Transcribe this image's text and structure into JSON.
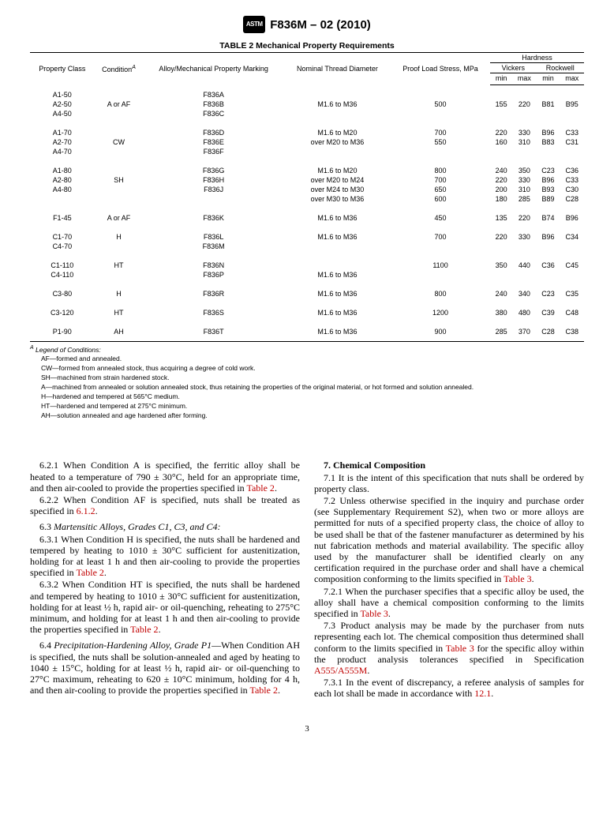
{
  "header": {
    "logo_text": "ASTM",
    "standard": "F836M – 02 (2010)"
  },
  "table": {
    "title": "TABLE 2 Mechanical Property Requirements",
    "columns": {
      "c1": "Property Class",
      "c2_html": "Condition",
      "c2_sup": "A",
      "c3": "Alloy/Mechanical Property Marking",
      "c4": "Nominal Thread Diameter",
      "c5": "Proof Load Stress, MPa",
      "hardness": "Hardness",
      "vickers": "Vickers",
      "rockwell": "Rockwell",
      "min": "min",
      "max": "max"
    },
    "groups": [
      {
        "rows": [
          {
            "pc": "A1-50",
            "cond": "",
            "mark": "F836A",
            "dia": "",
            "proof": "",
            "vmin": "",
            "vmax": "",
            "rmin": "",
            "rmax": ""
          },
          {
            "pc": "A2-50",
            "cond": "A or AF",
            "mark": "F836B",
            "dia": "M1.6 to M36",
            "proof": "500",
            "vmin": "155",
            "vmax": "220",
            "rmin": "B81",
            "rmax": "B95"
          },
          {
            "pc": "A4-50",
            "cond": "",
            "mark": "F836C",
            "dia": "",
            "proof": "",
            "vmin": "",
            "vmax": "",
            "rmin": "",
            "rmax": ""
          }
        ]
      },
      {
        "rows": [
          {
            "pc": "A1-70",
            "cond": "",
            "mark": "F836D",
            "dia": "M1.6 to M20",
            "proof": "700",
            "vmin": "220",
            "vmax": "330",
            "rmin": "B96",
            "rmax": "C33"
          },
          {
            "pc": "A2-70",
            "cond": "CW",
            "mark": "F836E",
            "dia": "over M20 to M36",
            "proof": "550",
            "vmin": "160",
            "vmax": "310",
            "rmin": "B83",
            "rmax": "C31"
          },
          {
            "pc": "A4-70",
            "cond": "",
            "mark": "F836F",
            "dia": "",
            "proof": "",
            "vmin": "",
            "vmax": "",
            "rmin": "",
            "rmax": ""
          }
        ]
      },
      {
        "rows": [
          {
            "pc": "A1-80",
            "cond": "",
            "mark": "F836G",
            "dia": "M1.6 to M20",
            "proof": "800",
            "vmin": "240",
            "vmax": "350",
            "rmin": "C23",
            "rmax": "C36"
          },
          {
            "pc": "A2-80",
            "cond": "SH",
            "mark": "F836H",
            "dia": "over M20 to M24",
            "proof": "700",
            "vmin": "220",
            "vmax": "330",
            "rmin": "B96",
            "rmax": "C33"
          },
          {
            "pc": "A4-80",
            "cond": "",
            "mark": "F836J",
            "dia": "over M24 to M30",
            "proof": "650",
            "vmin": "200",
            "vmax": "310",
            "rmin": "B93",
            "rmax": "C30"
          },
          {
            "pc": "",
            "cond": "",
            "mark": "",
            "dia": "over M30 to M36",
            "proof": "600",
            "vmin": "180",
            "vmax": "285",
            "rmin": "B89",
            "rmax": "C28"
          }
        ]
      },
      {
        "rows": [
          {
            "pc": "F1-45",
            "cond": "A or AF",
            "mark": "F836K",
            "dia": "M1.6 to M36",
            "proof": "450",
            "vmin": "135",
            "vmax": "220",
            "rmin": "B74",
            "rmax": "B96"
          }
        ]
      },
      {
        "rows": [
          {
            "pc": "C1-70",
            "cond": "H",
            "mark": "F836L",
            "dia": "M1.6 to M36",
            "proof": "700",
            "vmin": "220",
            "vmax": "330",
            "rmin": "B96",
            "rmax": "C34"
          },
          {
            "pc": "C4-70",
            "cond": "",
            "mark": "F836M",
            "dia": "",
            "proof": "",
            "vmin": "",
            "vmax": "",
            "rmin": "",
            "rmax": ""
          }
        ]
      },
      {
        "rows": [
          {
            "pc": "C1-110",
            "cond": "HT",
            "mark": "F836N",
            "dia": "",
            "proof": "1100",
            "vmin": "350",
            "vmax": "440",
            "rmin": "C36",
            "rmax": "C45"
          },
          {
            "pc": "C4-110",
            "cond": "",
            "mark": "F836P",
            "dia": "M1.6 to M36",
            "proof": "",
            "vmin": "",
            "vmax": "",
            "rmin": "",
            "rmax": ""
          }
        ]
      },
      {
        "rows": [
          {
            "pc": "C3-80",
            "cond": "H",
            "mark": "F836R",
            "dia": "M1.6 to M36",
            "proof": "800",
            "vmin": "240",
            "vmax": "340",
            "rmin": "C23",
            "rmax": "C35"
          }
        ]
      },
      {
        "rows": [
          {
            "pc": "C3-120",
            "cond": "HT",
            "mark": "F836S",
            "dia": "M1.6 to M36",
            "proof": "1200",
            "vmin": "380",
            "vmax": "480",
            "rmin": "C39",
            "rmax": "C48"
          }
        ]
      },
      {
        "rows": [
          {
            "pc": "P1-90",
            "cond": "AH",
            "mark": "F836T",
            "dia": "M1.6 to M36",
            "proof": "900",
            "vmin": "285",
            "vmax": "370",
            "rmin": "C28",
            "rmax": "C38"
          }
        ],
        "last": true
      }
    ]
  },
  "legend": {
    "header_sup": "A",
    "header": " Legend of Conditions:",
    "items": [
      "AF—formed and annealed.",
      "CW—formed from annealed stock, thus acquiring a degree of cold work.",
      "SH—machined from strain hardened stock.",
      "A—machined from annealed or solution annealed stock, thus retaining the properties of the original material, or hot formed and solution annealed.",
      "H—hardened and tempered at 565°C medium.",
      "HT—hardened and tempered at 275°C minimum.",
      "AH—solution annealed and age hardened after forming."
    ]
  },
  "body": {
    "p1a": "6.2.1 When Condition A is specified, the ferritic alloy shall be heated to a temperature of 790 ± 30°C, held for an appropriate time, and then air-cooled to provide the properties specified in ",
    "p1ref": "Table 2",
    "p1b": ".",
    "p2a": "6.2.2 When Condition AF is specified, nuts shall be treated as specified in ",
    "p2ref": "6.1.2",
    "p2b": ".",
    "p3": "6.3 Martensitic Alloys, Grades C1, C3, and C4:",
    "p4a": "6.3.1 When Condition H is specified, the nuts shall be hardened and tempered by heating to 1010 ± 30°C sufficient for austenitization, holding for at least 1 h and then air-cooling to provide the properties specified in ",
    "p4ref": "Table 2",
    "p4b": ".",
    "p5a": "6.3.2 When Condition HT is specified, the nuts shall be hardened and tempered by heating to 1010 ± 30°C sufficient for austenitization, holding for at least ½ h, rapid air- or oil-quenching, reheating to 275°C minimum, and holding for at least 1 h and then air-cooling to provide the properties specified in ",
    "p5ref": "Table 2",
    "p5b": ".",
    "p6a": "6.4 ",
    "p6i": "Precipitation-Hardening Alloy, Grade P1",
    "p6b": "—When Condition AH is specified, the nuts shall be solution-annealed and aged by heating to 1040 ± 15°C, holding for at least ½ h, rapid air- or oil-quenching to 27°C maximum, reheating to 620 ± 10°C minimum, holding for 4 h, and then air-cooling to provide the properties specified in ",
    "p6ref": "Table 2",
    "p6c": ".",
    "s7": "7. Chemical Composition",
    "p7a": "7.1 It is the intent of this specification that nuts shall be ordered by property class.",
    "p8a": "7.2 Unless otherwise specified in the inquiry and purchase order (see Supplementary Requirement S2), when two or more alloys are permitted for nuts of a specified property class, the choice of alloy to be used shall be that of the fastener manufacturer as determined by his nut fabrication methods and material availability. The specific alloy used by the manufacturer shall be identified clearly on any certification required in the purchase order and shall have a chemical composition conforming to the limits specified in ",
    "p8ref": "Table 3",
    "p8b": ".",
    "p9a": "7.2.1 When the purchaser specifies that a specific alloy be used, the alloy shall have a chemical composition conforming to the limits specified in ",
    "p9ref": "Table 3",
    "p9b": ".",
    "p10a": "7.3 Product analysis may be made by the purchaser from nuts representing each lot. The chemical composition thus determined shall conform to the limits specified in ",
    "p10ref1": "Table 3",
    "p10b": " for the specific alloy within the product analysis tolerances specified in Specification ",
    "p10ref2": "A555/A555M",
    "p10c": ".",
    "p11a": "7.3.1 In the event of discrepancy, a referee analysis of samples for each lot shall be made in accordance with ",
    "p11ref": "12.1",
    "p11b": "."
  },
  "page_number": "3"
}
